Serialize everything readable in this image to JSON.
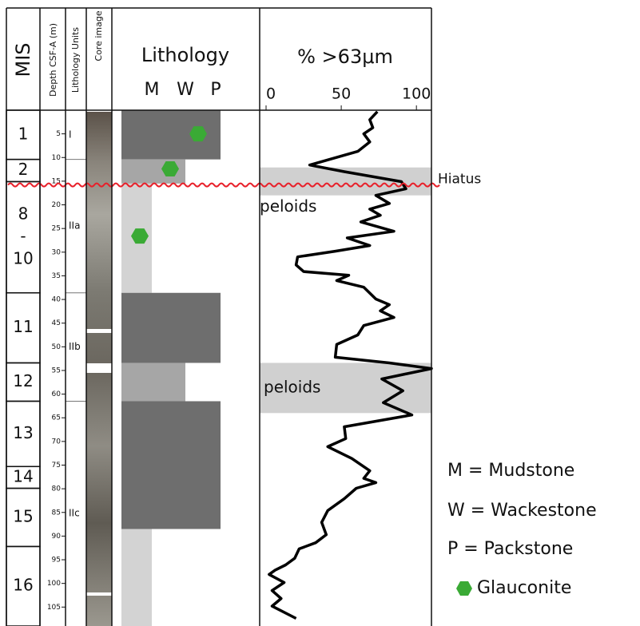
{
  "chart_data": {
    "type": "striplog",
    "headers": {
      "mis": "MIS",
      "depth": "Depth CSF-A (m)",
      "units": "Lithology Units",
      "core": "Core image",
      "lithology": "Lithology"
    },
    "ylim": [
      0,
      109
    ],
    "yticks": [
      5,
      10,
      15,
      20,
      25,
      30,
      35,
      40,
      45,
      50,
      55,
      60,
      65,
      70,
      75,
      80,
      85,
      90,
      95,
      100,
      105
    ],
    "mis": [
      {
        "label": [
          "1"
        ],
        "top": 0,
        "base": 10.4
      },
      {
        "label": [
          "2"
        ],
        "top": 10.4,
        "base": 15.1
      },
      {
        "label": [
          "8",
          "-",
          "10"
        ],
        "top": 15.1,
        "base": 38.6
      },
      {
        "label": [
          "11"
        ],
        "top": 38.6,
        "base": 53.4
      },
      {
        "label": [
          "12"
        ],
        "top": 53.4,
        "base": 61.5
      },
      {
        "label": [
          "13"
        ],
        "top": 61.5,
        "base": 75.3
      },
      {
        "label": [
          "14"
        ],
        "top": 75.3,
        "base": 79.9
      },
      {
        "label": [
          "15"
        ],
        "top": 79.9,
        "base": 92.2
      },
      {
        "label": [
          "16"
        ],
        "top": 92.2,
        "base": 109
      }
    ],
    "units": [
      {
        "label": "I",
        "top": 0,
        "base": 10.4
      },
      {
        "label": "IIa",
        "top": 10.4,
        "base": 38.6
      },
      {
        "label": "IIb",
        "top": 38.6,
        "base": 61.5
      },
      {
        "label": "IIc",
        "top": 61.5,
        "base": 109
      }
    ],
    "textures": [
      {
        "code": "M",
        "color": "#d3d3d3"
      },
      {
        "code": "W",
        "color": "#a6a6a6"
      },
      {
        "code": "P",
        "color": "#6e6e6e"
      }
    ],
    "lithology": [
      {
        "texture": 2,
        "top": 0,
        "base": 10.4
      },
      {
        "texture": 1,
        "top": 10.4,
        "base": 15.5
      },
      {
        "texture": 0,
        "top": 15.5,
        "base": 38.6
      },
      {
        "texture": 2,
        "top": 38.6,
        "base": 53.4
      },
      {
        "texture": 1,
        "top": 53.4,
        "base": 61.5
      },
      {
        "texture": 2,
        "top": 61.5,
        "base": 88.5
      },
      {
        "texture": 0,
        "top": 88.5,
        "base": 109
      }
    ],
    "glauconite": {
      "color": "#3aaa35",
      "depths": [
        5,
        12.4,
        26.6
      ]
    },
    "xlabel": "% >63μm",
    "xlim": [
      0,
      110
    ],
    "xticks": [
      0,
      50,
      100
    ],
    "profile": {
      "color": "#000000",
      "depth": [
        0.3,
        2.0,
        3.7,
        5,
        6.7,
        8.7,
        11.6,
        13.0,
        15.1,
        16.6,
        18.0,
        19.7,
        20.9,
        22.2,
        23.6,
        25.6,
        27.0,
        28.6,
        29.8,
        31.0,
        32.7,
        34.1,
        34.9,
        36.0,
        37.4,
        39.9,
        41.1,
        42.4,
        43.8,
        45.5,
        47.5,
        49.5,
        52.2,
        53.4,
        54.6,
        56.8,
        59.3,
        61.8,
        64.4,
        66.9,
        69.4,
        71.1,
        73.6,
        76.2,
        77.8,
        78.7,
        79.9,
        82.1,
        84.6,
        87.1,
        89.7,
        91.4,
        92.7,
        94.7,
        96.1,
        97.2,
        98.1,
        99.8,
        101.5,
        103.2,
        104.8,
        107.4
      ],
      "percent": [
        74,
        69,
        71,
        65,
        69,
        61,
        29,
        52,
        90,
        93,
        73,
        82,
        69,
        76,
        63,
        85,
        54,
        69,
        46,
        21,
        20,
        25,
        55,
        47,
        65,
        73,
        82,
        76,
        85,
        65,
        61,
        47,
        46,
        82,
        110,
        77,
        91,
        78,
        97,
        52,
        53,
        41,
        57,
        69,
        65,
        73,
        60,
        52,
        41,
        37,
        40,
        33,
        22,
        19,
        13,
        6,
        2,
        12,
        4,
        10,
        4,
        20
      ]
    },
    "bands": [
      {
        "range": [
          12.1,
          18.0
        ],
        "label": "peloids",
        "color": "#d0d0d0"
      },
      {
        "range": [
          53.4,
          64.0
        ],
        "label": "peloids",
        "color": "#d0d0d0"
      }
    ],
    "hiatus": {
      "label": "Hiatus",
      "depth": 15.8,
      "color": "#e8202a"
    },
    "legend": [
      "M = Mudstone",
      "W = Wackestone",
      "P = Packstone",
      "Glauconite"
    ]
  }
}
